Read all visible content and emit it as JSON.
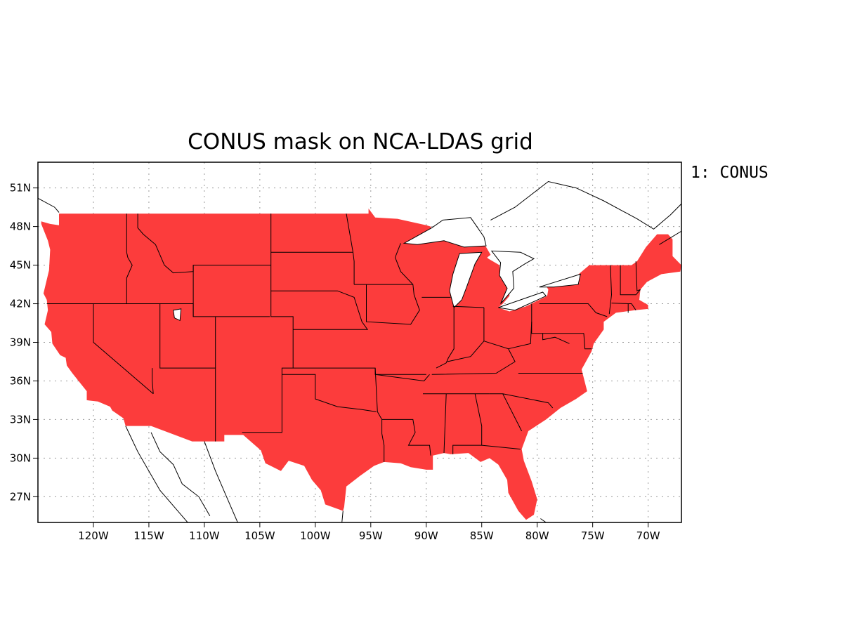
{
  "title": "CONUS mask on NCA-LDAS grid",
  "legend": {
    "label": "1: CONUS",
    "color": "#fc3c3c"
  },
  "map": {
    "projection": "lat-lon",
    "lon_range": [
      -125,
      -67
    ],
    "lat_range": [
      25,
      53
    ],
    "x_ticks": [
      {
        "lon": -120,
        "label": "120W"
      },
      {
        "lon": -115,
        "label": "115W"
      },
      {
        "lon": -110,
        "label": "110W"
      },
      {
        "lon": -105,
        "label": "105W"
      },
      {
        "lon": -100,
        "label": "100W"
      },
      {
        "lon": -95,
        "label": "95W"
      },
      {
        "lon": -90,
        "label": "90W"
      },
      {
        "lon": -85,
        "label": "85W"
      },
      {
        "lon": -80,
        "label": "80W"
      },
      {
        "lon": -75,
        "label": "75W"
      },
      {
        "lon": -70,
        "label": "70W"
      }
    ],
    "y_ticks": [
      {
        "lat": 27,
        "label": "27N"
      },
      {
        "lat": 30,
        "label": "30N"
      },
      {
        "lat": 33,
        "label": "33N"
      },
      {
        "lat": 36,
        "label": "36N"
      },
      {
        "lat": 39,
        "label": "39N"
      },
      {
        "lat": 42,
        "label": "42N"
      },
      {
        "lat": 45,
        "label": "45N"
      },
      {
        "lat": 48,
        "label": "48N"
      },
      {
        "lat": 51,
        "label": "51N"
      }
    ],
    "grid": true,
    "mask_color": "#fc3c3c"
  }
}
